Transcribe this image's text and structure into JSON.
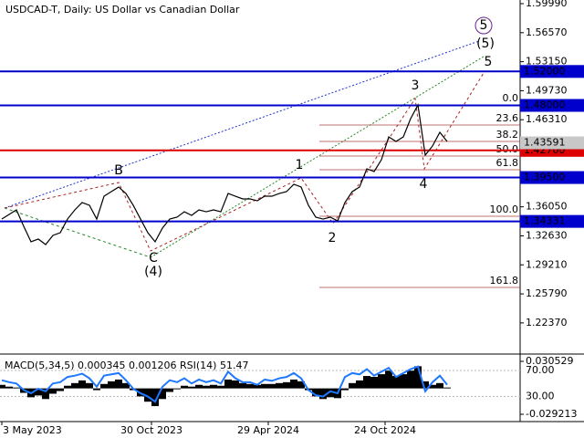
{
  "chart_data": {
    "type": "line",
    "title": "USDCAD-T, Daily:  US Dollar vs Canadian Dollar",
    "x": [
      0,
      1,
      2,
      3,
      4,
      5,
      6,
      7,
      8,
      9,
      10,
      11,
      12,
      13,
      14,
      15,
      16,
      17,
      18,
      19,
      20,
      21,
      22,
      23,
      24,
      25,
      26,
      27,
      28,
      29,
      30,
      31,
      32,
      33,
      34,
      35,
      36,
      37,
      38,
      39,
      40,
      41,
      42,
      43,
      44,
      45,
      46,
      47,
      48,
      49,
      50,
      51,
      52,
      53,
      54,
      55,
      56,
      57,
      58,
      59,
      60,
      61
    ],
    "series": [
      {
        "name": "USDCAD-T",
        "color": "#000000",
        "values": [
          1.3461,
          1.3515,
          1.3569,
          1.3375,
          1.3193,
          1.3225,
          1.316,
          1.3268,
          1.33,
          1.3461,
          1.3569,
          1.3655,
          1.3623,
          1.3461,
          1.373,
          1.3784,
          1.3838,
          1.3762,
          1.3623,
          1.3461,
          1.33,
          1.3193,
          1.3354,
          1.3461,
          1.3483,
          1.3547,
          1.3504,
          1.3569,
          1.3547,
          1.3569,
          1.3547,
          1.3762,
          1.373,
          1.3698,
          1.3698,
          1.3676,
          1.373,
          1.373,
          1.3762,
          1.3784,
          1.387,
          1.3838,
          1.3623,
          1.3483,
          1.3461,
          1.3483,
          1.344,
          1.3655,
          1.3784,
          1.3838,
          1.4053,
          1.4021,
          1.416,
          1.4429,
          1.4375,
          1.4429,
          1.4644,
          1.4805,
          1.4214,
          1.4322,
          1.4483,
          1.4375
        ]
      }
    ],
    "xlim": [
      -0.25,
      71
    ],
    "xticks": [
      {
        "value": 0,
        "label": "3 May 2023"
      },
      {
        "value": 20.5,
        "label": "30 Oct 2023"
      },
      {
        "value": 36.5,
        "label": "29 Apr 2024"
      },
      {
        "value": 52.5,
        "label": "24 Oct 2024"
      }
    ],
    "ylim": [
      1.187,
      1.6042
    ],
    "yticks": [
      {
        "value": 1.5999,
        "label": "1.59990"
      },
      {
        "value": 1.5657,
        "label": "1.56570"
      },
      {
        "value": 1.5315,
        "label": "1.53150"
      },
      {
        "value": 1.4973,
        "label": "1.49730"
      },
      {
        "value": 1.4631,
        "label": "1.46310"
      },
      {
        "value": 1.3605,
        "label": "1.36050"
      },
      {
        "value": 1.3263,
        "label": "1.32630"
      },
      {
        "value": 1.2921,
        "label": "1.29210"
      },
      {
        "value": 1.2579,
        "label": "1.25790"
      },
      {
        "value": 1.2237,
        "label": "1.22370"
      }
    ],
    "levels": [
      {
        "value": 1.52,
        "label": "1.52000",
        "color": "#0000cc"
      },
      {
        "value": 1.48,
        "label": "1.48000",
        "color": "#0000cc"
      },
      {
        "value": 1.427,
        "label": "1.42700",
        "color": "#dd0000"
      },
      {
        "value": 1.395,
        "label": "1.39500",
        "color": "#0000cc"
      },
      {
        "value": 1.34331,
        "label": "1.34331",
        "color": "#0000cc"
      }
    ],
    "current_price": {
      "value": 1.43591,
      "label": "1.43591"
    },
    "fib_levels": [
      "0.0",
      "23.6",
      "38.2",
      "50.0",
      "61.8",
      "100.0",
      "161.8"
    ],
    "waves": [
      "B",
      "C",
      "(4)",
      "1",
      "2",
      "3",
      "4",
      "5",
      "(5)",
      "5"
    ],
    "indicator": {
      "title": "MACD(5,34,5) 0.000345 0.001206 RSI(14) 51.47",
      "macd_lim": [
        -0.029213,
        0.030529
      ],
      "macd_ticks": [
        {
          "value": 0.030529,
          "label": "0.030529"
        },
        {
          "value": -0.029213,
          "label": "-0.029213"
        }
      ],
      "rsi_lim": [
        -8.5,
        95.2
      ],
      "rsi_ticks": [
        {
          "value": 70,
          "label": "70.00"
        },
        {
          "value": 30,
          "label": "30.00"
        }
      ],
      "macd": [
        0.004,
        0.002,
        0.001,
        -0.005,
        -0.01,
        -0.008,
        -0.012,
        -0.006,
        -0.003,
        0.003,
        0.006,
        0.009,
        0.006,
        -0.002,
        0.005,
        0.008,
        0.01,
        0.006,
        -0.002,
        -0.009,
        -0.015,
        -0.02,
        -0.012,
        -0.004,
        -0.001,
        0.003,
        0.002,
        0.004,
        0.003,
        0.004,
        0.003,
        0.01,
        0.009,
        0.006,
        0.005,
        0.004,
        0.005,
        0.005,
        0.006,
        0.007,
        0.01,
        0.008,
        -0.002,
        -0.009,
        -0.012,
        -0.01,
        -0.011,
        -0.002,
        0.006,
        0.009,
        0.014,
        0.013,
        0.016,
        0.02,
        0.014,
        0.016,
        0.02,
        0.025,
        0.008,
        0.004,
        0.006,
        0.001
      ],
      "rsi": [
        55,
        52,
        50,
        40,
        35,
        42,
        38,
        50,
        52,
        60,
        62,
        65,
        58,
        45,
        62,
        64,
        66,
        55,
        42,
        35,
        30,
        22,
        45,
        55,
        52,
        58,
        50,
        56,
        52,
        55,
        50,
        68,
        58,
        52,
        52,
        48,
        56,
        54,
        58,
        60,
        66,
        58,
        40,
        32,
        30,
        38,
        35,
        60,
        66,
        64,
        72,
        62,
        68,
        74,
        60,
        66,
        72,
        76,
        38,
        52,
        62,
        48
      ],
      "rsi_color": "#1e78ff"
    }
  }
}
